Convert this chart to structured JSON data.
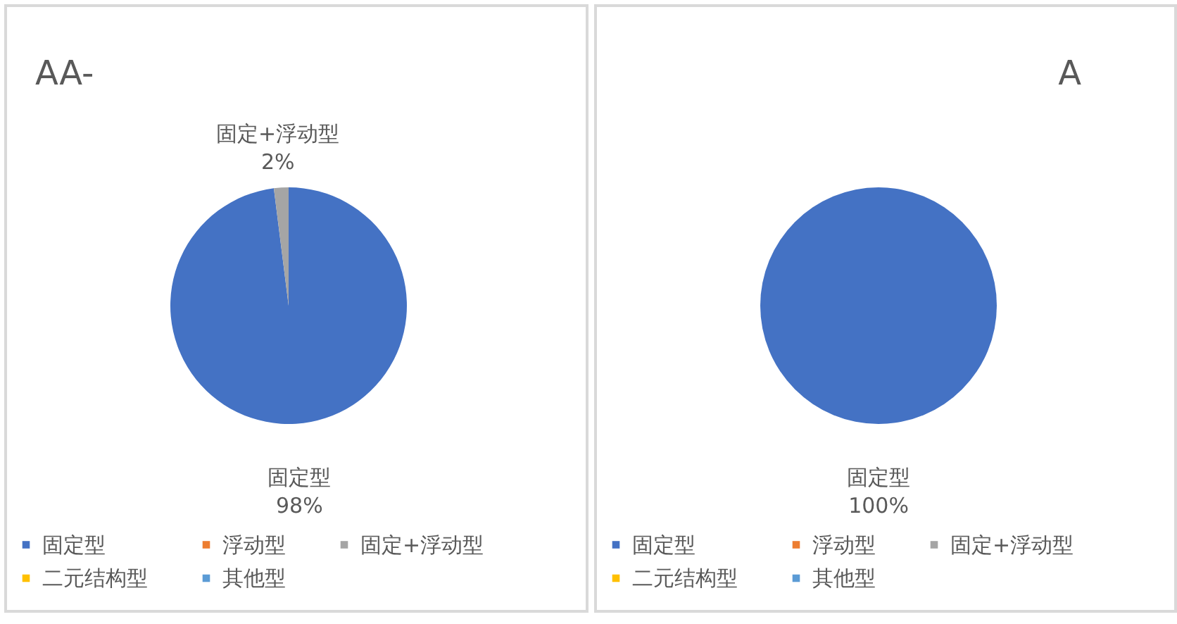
{
  "chart_data": [
    {
      "type": "pie",
      "title": "AA-",
      "categories": [
        "固定型",
        "浮动型",
        "固定+浮动型",
        "二元结构型",
        "其他型"
      ],
      "values": [
        98,
        0,
        2,
        0,
        0
      ],
      "value_labels": [
        "98%",
        null,
        "2%",
        null,
        null
      ],
      "colors": [
        "#4472c4",
        "#ed7d31",
        "#a5a5a5",
        "#ffc000",
        "#5b9bd5"
      ],
      "legend": "bottom"
    },
    {
      "type": "pie",
      "title": "A",
      "categories": [
        "固定型",
        "浮动型",
        "固定+浮动型",
        "二元结构型",
        "其他型"
      ],
      "values": [
        100,
        0,
        0,
        0,
        0
      ],
      "value_labels": [
        "100%",
        null,
        null,
        null,
        null
      ],
      "colors": [
        "#4472c4",
        "#ed7d31",
        "#a5a5a5",
        "#ffc000",
        "#5b9bd5"
      ],
      "legend": "bottom"
    }
  ]
}
